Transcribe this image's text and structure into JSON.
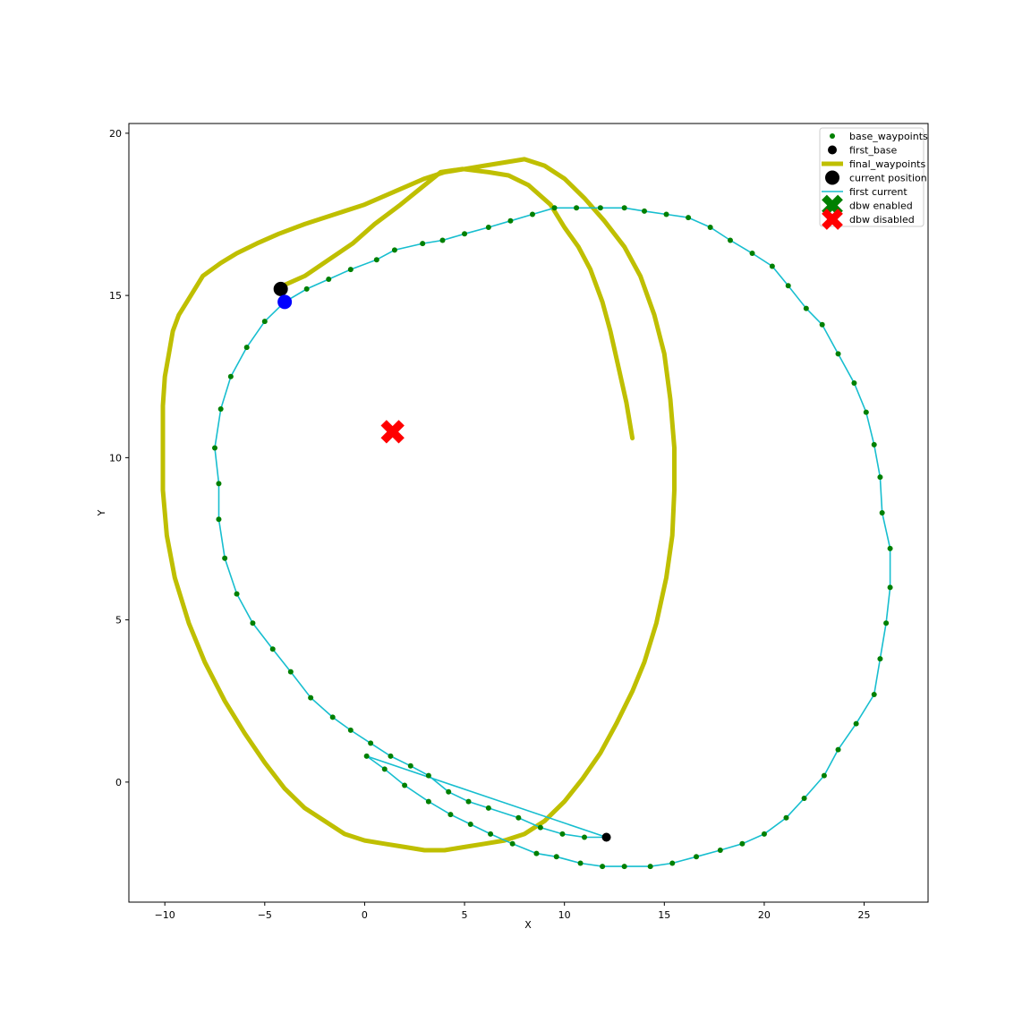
{
  "chart_data": {
    "type": "scatter",
    "title": "",
    "xlabel": "X",
    "ylabel": "Y",
    "xlim": [
      -11.8,
      28.2
    ],
    "ylim": [
      -3.7,
      20.3
    ],
    "xticks": [
      -10,
      -5,
      0,
      5,
      10,
      15,
      20,
      25
    ],
    "yticks": [
      0,
      5,
      10,
      15,
      20
    ],
    "xtick_labels": [
      "−10",
      "−5",
      "0",
      "5",
      "10",
      "15",
      "20",
      "25"
    ],
    "ytick_labels": [
      "0",
      "5",
      "10",
      "15",
      "20"
    ],
    "grid": false,
    "legend_position": "top-right",
    "legend": [
      {
        "label": "base_waypoints",
        "kind": "dot-small",
        "color": "#008000"
      },
      {
        "label": "first_base",
        "kind": "dot-medium",
        "color": "#000000"
      },
      {
        "label": "final_waypoints",
        "kind": "thick-line",
        "color": "#bfbf00"
      },
      {
        "label": "current position",
        "kind": "dot-large",
        "color": "#000000"
      },
      {
        "label": "first current",
        "kind": "thin-line",
        "color": "#17becf"
      },
      {
        "label": "dbw enabled",
        "kind": "cross",
        "color": "#008000"
      },
      {
        "label": "dbw disabled",
        "kind": "cross",
        "color": "#ff0000"
      }
    ],
    "series": [
      {
        "name": "base_waypoints",
        "color": "#008000",
        "line_color": "#17becf",
        "points": [
          [
            12.1,
            -1.7
          ],
          [
            11.0,
            -1.7
          ],
          [
            9.9,
            -1.6
          ],
          [
            8.8,
            -1.4
          ],
          [
            7.7,
            -1.1
          ],
          [
            6.2,
            -0.8
          ],
          [
            5.2,
            -0.6
          ],
          [
            4.2,
            -0.3
          ],
          [
            3.2,
            0.2
          ],
          [
            2.3,
            0.5
          ],
          [
            1.3,
            0.8
          ],
          [
            0.3,
            1.2
          ],
          [
            -0.7,
            1.6
          ],
          [
            -1.6,
            2.0
          ],
          [
            -2.7,
            2.6
          ],
          [
            -3.7,
            3.4
          ],
          [
            -4.6,
            4.1
          ],
          [
            -5.6,
            4.9
          ],
          [
            -6.4,
            5.8
          ],
          [
            -7.0,
            6.9
          ],
          [
            -7.3,
            8.1
          ],
          [
            -7.3,
            9.2
          ],
          [
            -7.5,
            10.3
          ],
          [
            -7.2,
            11.5
          ],
          [
            -6.7,
            12.5
          ],
          [
            -5.9,
            13.4
          ],
          [
            -5.0,
            14.2
          ],
          [
            -4.0,
            14.8
          ],
          [
            -2.9,
            15.2
          ],
          [
            -1.8,
            15.5
          ],
          [
            -0.7,
            15.8
          ],
          [
            0.6,
            16.1
          ],
          [
            1.5,
            16.4
          ],
          [
            2.9,
            16.6
          ],
          [
            3.9,
            16.7
          ],
          [
            5.0,
            16.9
          ],
          [
            6.2,
            17.1
          ],
          [
            7.3,
            17.3
          ],
          [
            8.4,
            17.5
          ],
          [
            9.5,
            17.7
          ],
          [
            10.6,
            17.7
          ],
          [
            11.8,
            17.7
          ],
          [
            13.0,
            17.7
          ],
          [
            14.0,
            17.6
          ],
          [
            15.1,
            17.5
          ],
          [
            16.2,
            17.4
          ],
          [
            17.3,
            17.1
          ],
          [
            18.3,
            16.7
          ],
          [
            19.4,
            16.3
          ],
          [
            20.4,
            15.9
          ],
          [
            21.2,
            15.3
          ],
          [
            22.1,
            14.6
          ],
          [
            22.9,
            14.1
          ],
          [
            23.7,
            13.2
          ],
          [
            24.5,
            12.3
          ],
          [
            25.1,
            11.4
          ],
          [
            25.5,
            10.4
          ],
          [
            25.8,
            9.4
          ],
          [
            25.9,
            8.3
          ],
          [
            26.3,
            7.2
          ],
          [
            26.3,
            6.0
          ],
          [
            26.1,
            4.9
          ],
          [
            25.8,
            3.8
          ],
          [
            25.5,
            2.7
          ],
          [
            24.6,
            1.8
          ],
          [
            23.7,
            1.0
          ],
          [
            23.0,
            0.2
          ],
          [
            22.0,
            -0.5
          ],
          [
            21.1,
            -1.1
          ],
          [
            20.0,
            -1.6
          ],
          [
            18.9,
            -1.9
          ],
          [
            17.8,
            -2.1
          ],
          [
            16.6,
            -2.3
          ],
          [
            15.4,
            -2.5
          ],
          [
            14.3,
            -2.6
          ],
          [
            13.0,
            -2.6
          ],
          [
            11.9,
            -2.6
          ],
          [
            10.8,
            -2.5
          ],
          [
            9.6,
            -2.3
          ],
          [
            8.6,
            -2.2
          ],
          [
            7.4,
            -1.9
          ],
          [
            6.3,
            -1.6
          ],
          [
            5.3,
            -1.3
          ],
          [
            4.3,
            -1.0
          ],
          [
            3.2,
            -0.6
          ],
          [
            2.0,
            -0.1
          ],
          [
            1.0,
            0.4
          ],
          [
            0.1,
            0.8
          ],
          [
            12.1,
            -1.7
          ]
        ]
      },
      {
        "name": "final_waypoints",
        "color": "#bfbf00",
        "points": [
          [
            -4.1,
            15.3
          ],
          [
            -3.0,
            15.6
          ],
          [
            -1.8,
            16.1
          ],
          [
            -0.6,
            16.6
          ],
          [
            0.5,
            17.2
          ],
          [
            1.8,
            17.8
          ],
          [
            2.8,
            18.3
          ],
          [
            3.8,
            18.8
          ],
          [
            4.9,
            18.9
          ],
          [
            6.2,
            18.8
          ],
          [
            7.2,
            18.7
          ],
          [
            8.2,
            18.4
          ],
          [
            9.3,
            17.8
          ],
          [
            10.0,
            17.1
          ],
          [
            10.7,
            16.5
          ],
          [
            11.3,
            15.8
          ],
          [
            11.9,
            14.8
          ],
          [
            12.3,
            13.9
          ],
          [
            12.7,
            12.8
          ],
          [
            13.1,
            11.7
          ],
          [
            13.4,
            10.6
          ]
        ]
      },
      {
        "name": "final_waypoints (previous)",
        "color": "#bfbf00",
        "points": [
          [
            5.0,
            -2.0
          ],
          [
            4.0,
            -2.1
          ],
          [
            3.0,
            -2.1
          ],
          [
            2.0,
            -2.0
          ],
          [
            1.0,
            -1.9
          ],
          [
            0.0,
            -1.8
          ],
          [
            -1.0,
            -1.6
          ],
          [
            -2.0,
            -1.2
          ],
          [
            -3.0,
            -0.8
          ],
          [
            -4.0,
            -0.2
          ],
          [
            -5.0,
            0.6
          ],
          [
            -6.0,
            1.5
          ],
          [
            -7.0,
            2.5
          ],
          [
            -8.0,
            3.7
          ],
          [
            -8.8,
            4.9
          ],
          [
            -9.5,
            6.3
          ],
          [
            -9.9,
            7.6
          ],
          [
            -10.1,
            9.0
          ],
          [
            -10.1,
            10.3
          ],
          [
            -10.1,
            11.6
          ],
          [
            -10.0,
            12.5
          ],
          [
            -9.8,
            13.2
          ],
          [
            -9.6,
            13.9
          ],
          [
            -9.3,
            14.4
          ],
          [
            -8.8,
            14.9
          ],
          [
            -8.1,
            15.6
          ],
          [
            -7.2,
            16.0
          ],
          [
            -6.4,
            16.3
          ],
          [
            -5.4,
            16.6
          ],
          [
            -4.3,
            16.9
          ],
          [
            -3.0,
            17.2
          ],
          [
            -1.5,
            17.5
          ],
          [
            0.0,
            17.8
          ],
          [
            1.5,
            18.2
          ],
          [
            3.0,
            18.6
          ],
          [
            4.0,
            18.8
          ],
          [
            5.0,
            18.9
          ],
          [
            6.0,
            19.0
          ],
          [
            7.0,
            19.1
          ],
          [
            8.0,
            19.2
          ],
          [
            9.0,
            19.0
          ],
          [
            10.0,
            18.6
          ],
          [
            11.0,
            18.0
          ],
          [
            12.0,
            17.3
          ],
          [
            13.0,
            16.5
          ],
          [
            13.8,
            15.6
          ],
          [
            14.5,
            14.4
          ],
          [
            15.0,
            13.2
          ],
          [
            15.3,
            11.8
          ],
          [
            15.5,
            10.3
          ],
          [
            15.5,
            9.0
          ],
          [
            15.4,
            7.6
          ],
          [
            15.1,
            6.3
          ],
          [
            14.6,
            4.9
          ],
          [
            14.0,
            3.7
          ],
          [
            13.4,
            2.8
          ],
          [
            12.6,
            1.8
          ],
          [
            11.8,
            0.9
          ],
          [
            10.9,
            0.1
          ],
          [
            10.0,
            -0.6
          ],
          [
            9.0,
            -1.2
          ],
          [
            8.0,
            -1.6
          ],
          [
            7.0,
            -1.8
          ],
          [
            6.0,
            -1.9
          ],
          [
            5.0,
            -2.0
          ]
        ]
      }
    ],
    "markers": [
      {
        "name": "first_base",
        "x": 12.1,
        "y": -1.7,
        "color": "#000000"
      },
      {
        "name": "current position",
        "x": -4.2,
        "y": 15.2,
        "color": "#000000"
      },
      {
        "name": "first current",
        "x": -4.0,
        "y": 14.8,
        "color": "#0000ff"
      },
      {
        "name": "dbw disabled",
        "x": 1.4,
        "y": 10.8,
        "color": "#ff0000"
      }
    ]
  }
}
